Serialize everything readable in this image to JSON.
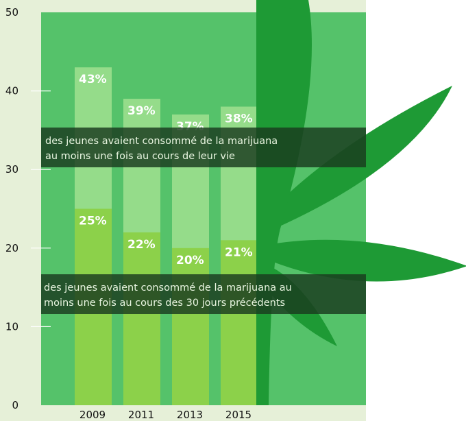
{
  "chart_data": {
    "type": "bar",
    "categories": [
      "2009",
      "2011",
      "2013",
      "2015"
    ],
    "series": [
      {
        "name": "des jeunes avaient consommé de la marijuana au moins une fois au cours de leur vie",
        "values": [
          43,
          39,
          37,
          38
        ]
      },
      {
        "name": "des jeunes avaient consommé de la marijuana au moins une fois au cours des 30 jours précédents",
        "values": [
          25,
          22,
          20,
          21
        ]
      }
    ],
    "value_labels": [
      [
        "43%",
        "39%",
        "37%",
        "38%"
      ],
      [
        "25%",
        "22%",
        "20%",
        "21%"
      ]
    ],
    "ylim": [
      0,
      50
    ],
    "yticks": [
      0,
      10,
      20,
      30,
      40,
      50
    ],
    "legend": {
      "placement": "overlay-bands",
      "lifetime_lines": [
        "des jeunes avaient consommé de la marijuana",
        "au moins une fois au cours de leur vie"
      ],
      "past30_lines": [
        "des jeunes avaient consommé de la marijuana au",
        "moins une fois au cours des 30 jours précédents"
      ]
    },
    "grid": false,
    "colors": {
      "page_bg": "#e6f0d8",
      "plot_bg": "#55c26a",
      "lifetime_bar": "#95dc8a",
      "past30_bar": "#8cd14a",
      "leaf": "#1e9a35",
      "band": "#1a3a1e",
      "label": "#ffffff"
    },
    "decoration": "cannabis-leaf"
  }
}
